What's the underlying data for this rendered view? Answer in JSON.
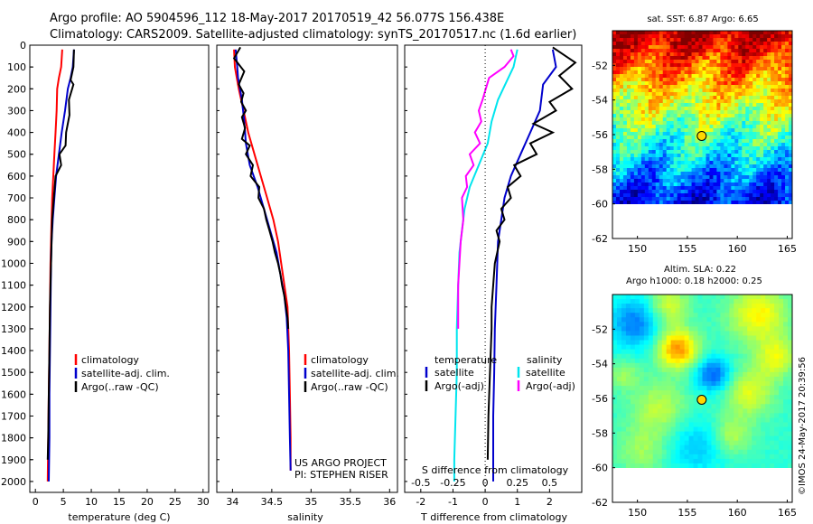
{
  "header": {
    "line1": "Argo profile: AO 5904596_112 18-May-2017 20170519_42 56.077S 156.438E",
    "line2": "Climatology: CARS2009. Satellite-adjusted climatology: synTS_20170517.nc (1.6d earlier)"
  },
  "colors": {
    "climatology": "#ff0000",
    "satellite": "#0000cc",
    "argo": "#000000",
    "satellite_s": "#00e5ee",
    "argo_s": "#ff00ff"
  },
  "y_axis": {
    "ticks": [
      "0",
      "100",
      "200",
      "300",
      "400",
      "500",
      "600",
      "700",
      "800",
      "900",
      "1000",
      "1100",
      "1200",
      "1300",
      "1400",
      "1500",
      "1600",
      "1700",
      "1800",
      "1900",
      "2000"
    ],
    "lim": [
      0,
      2050
    ]
  },
  "chart_data": [
    {
      "type": "line",
      "xlabel": "temperature (deg C)",
      "xlim": [
        -1,
        31
      ],
      "xticks": [
        "0",
        "5",
        "10",
        "15",
        "20",
        "25",
        "30"
      ],
      "ylim": [
        2050,
        0
      ],
      "legend": [
        "climatology",
        "satellite-adj. clim.",
        "Argo(..raw -QC)"
      ],
      "series": [
        {
          "name": "climatology",
          "color": "#ff0000",
          "points": [
            [
              4.8,
              20
            ],
            [
              4.6,
              100
            ],
            [
              4.2,
              150
            ],
            [
              3.9,
              200
            ],
            [
              3.8,
              300
            ],
            [
              3.6,
              400
            ],
            [
              3.4,
              500
            ],
            [
              3.2,
              600
            ],
            [
              3.0,
              700
            ],
            [
              2.9,
              800
            ],
            [
              2.8,
              900
            ],
            [
              2.7,
              1000
            ],
            [
              2.6,
              1200
            ],
            [
              2.5,
              1400
            ],
            [
              2.4,
              1600
            ],
            [
              2.3,
              1800
            ],
            [
              2.2,
              2000
            ]
          ]
        },
        {
          "name": "satellite-adj. clim.",
          "color": "#0000cc",
          "points": [
            [
              6.9,
              20
            ],
            [
              6.7,
              100
            ],
            [
              6.3,
              150
            ],
            [
              5.8,
              200
            ],
            [
              5.3,
              300
            ],
            [
              4.7,
              400
            ],
            [
              4.2,
              500
            ],
            [
              3.7,
              600
            ],
            [
              3.4,
              700
            ],
            [
              3.1,
              800
            ],
            [
              2.9,
              900
            ],
            [
              2.8,
              1000
            ],
            [
              2.7,
              1200
            ],
            [
              2.6,
              1400
            ],
            [
              2.5,
              1600
            ],
            [
              2.5,
              1800
            ],
            [
              2.4,
              2000
            ]
          ]
        },
        {
          "name": "Argo(..raw -QC)",
          "color": "#000000",
          "points": [
            [
              6.9,
              20
            ],
            [
              6.8,
              100
            ],
            [
              6.3,
              160
            ],
            [
              6.8,
              180
            ],
            [
              6.0,
              250
            ],
            [
              6.1,
              320
            ],
            [
              5.5,
              400
            ],
            [
              5.4,
              460
            ],
            [
              4.3,
              500
            ],
            [
              4.6,
              550
            ],
            [
              3.6,
              600
            ],
            [
              3.3,
              700
            ],
            [
              3.0,
              800
            ],
            [
              2.9,
              900
            ],
            [
              2.8,
              1000
            ],
            [
              2.6,
              1200
            ],
            [
              2.5,
              1400
            ],
            [
              2.4,
              1600
            ],
            [
              2.3,
              1800
            ],
            [
              2.2,
              1900
            ]
          ]
        }
      ]
    },
    {
      "type": "line",
      "xlabel": "salinity",
      "xlim": [
        33.8,
        36.1
      ],
      "xticks": [
        "34",
        "34.5",
        "35",
        "35.5",
        "36"
      ],
      "ylim": [
        2050,
        0
      ],
      "legend": [
        "climatology",
        "satellite-adj. clim.",
        "Argo(..raw -QC)"
      ],
      "series": [
        {
          "name": "climatology",
          "color": "#ff0000",
          "points": [
            [
              34.02,
              20
            ],
            [
              34.03,
              100
            ],
            [
              34.08,
              200
            ],
            [
              34.14,
              300
            ],
            [
              34.2,
              400
            ],
            [
              34.28,
              500
            ],
            [
              34.36,
              600
            ],
            [
              34.44,
              700
            ],
            [
              34.52,
              800
            ],
            [
              34.58,
              900
            ],
            [
              34.62,
              1000
            ],
            [
              34.66,
              1100
            ],
            [
              34.7,
              1200
            ],
            [
              34.72,
              1400
            ],
            [
              34.73,
              1600
            ],
            [
              34.74,
              1800
            ],
            [
              34.74,
              1950
            ]
          ]
        },
        {
          "name": "satellite-adj. clim.",
          "color": "#0000cc",
          "points": [
            [
              34.04,
              20
            ],
            [
              34.06,
              100
            ],
            [
              34.07,
              150
            ],
            [
              34.12,
              250
            ],
            [
              34.15,
              350
            ],
            [
              34.17,
              450
            ],
            [
              34.22,
              550
            ],
            [
              34.32,
              650
            ],
            [
              34.4,
              750
            ],
            [
              34.48,
              850
            ],
            [
              34.56,
              950
            ],
            [
              34.61,
              1050
            ],
            [
              34.66,
              1150
            ],
            [
              34.69,
              1250
            ],
            [
              34.71,
              1400
            ],
            [
              34.72,
              1600
            ],
            [
              34.73,
              1800
            ],
            [
              34.74,
              1950
            ]
          ]
        },
        {
          "name": "Argo(..raw -QC)",
          "color": "#000000",
          "points": [
            [
              34.1,
              10
            ],
            [
              34.02,
              60
            ],
            [
              34.15,
              120
            ],
            [
              34.08,
              180
            ],
            [
              34.14,
              220
            ],
            [
              34.11,
              260
            ],
            [
              34.17,
              300
            ],
            [
              34.12,
              330
            ],
            [
              34.16,
              380
            ],
            [
              34.12,
              430
            ],
            [
              34.22,
              460
            ],
            [
              34.17,
              500
            ],
            [
              34.26,
              550
            ],
            [
              34.23,
              600
            ],
            [
              34.34,
              650
            ],
            [
              34.33,
              700
            ],
            [
              34.4,
              750
            ],
            [
              34.43,
              800
            ],
            [
              34.47,
              850
            ],
            [
              34.51,
              900
            ],
            [
              34.54,
              950
            ],
            [
              34.58,
              1000
            ],
            [
              34.61,
              1050
            ],
            [
              34.63,
              1100
            ],
            [
              34.66,
              1150
            ],
            [
              34.68,
              1200
            ],
            [
              34.7,
              1250
            ],
            [
              34.71,
              1300
            ]
          ]
        }
      ]
    },
    {
      "type": "line",
      "xlabel": "T difference from climatology",
      "xlabel_top": "S difference from climatology",
      "xlim": [
        -2.5,
        3.0
      ],
      "xticks": [
        "-2",
        "-1",
        "0",
        "1",
        "2"
      ],
      "xticks_top": [
        "-0.5",
        "-0.25",
        "0",
        "0.25",
        "0.5"
      ],
      "ylim": [
        2050,
        0
      ],
      "legend_t_title": "temperature",
      "legend_t": [
        "satellite",
        "Argo(-adj)"
      ],
      "legend_s_title": "salinity",
      "legend_s": [
        "satellite",
        "Argo(-adj)"
      ],
      "series": [
        {
          "name": "temperature satellite",
          "color": "#0000cc",
          "points": [
            [
              2.1,
              20
            ],
            [
              2.2,
              100
            ],
            [
              1.8,
              180
            ],
            [
              1.7,
              300
            ],
            [
              1.4,
              400
            ],
            [
              1.1,
              500
            ],
            [
              0.8,
              600
            ],
            [
              0.6,
              700
            ],
            [
              0.5,
              800
            ],
            [
              0.4,
              900
            ],
            [
              0.35,
              1100
            ],
            [
              0.3,
              1300
            ],
            [
              0.28,
              1500
            ],
            [
              0.25,
              1700
            ],
            [
              0.25,
              1900
            ],
            [
              0.25,
              2000
            ]
          ]
        },
        {
          "name": "temperature Argo(-adj)",
          "color": "#000000",
          "points": [
            [
              2.1,
              10
            ],
            [
              2.8,
              80
            ],
            [
              2.3,
              140
            ],
            [
              2.7,
              200
            ],
            [
              2.0,
              260
            ],
            [
              2.2,
              300
            ],
            [
              1.5,
              360
            ],
            [
              2.1,
              400
            ],
            [
              1.4,
              450
            ],
            [
              1.6,
              500
            ],
            [
              0.9,
              550
            ],
            [
              1.1,
              600
            ],
            [
              0.7,
              650
            ],
            [
              0.8,
              700
            ],
            [
              0.5,
              750
            ],
            [
              0.6,
              800
            ],
            [
              0.35,
              850
            ],
            [
              0.45,
              900
            ],
            [
              0.3,
              1000
            ],
            [
              0.25,
              1100
            ],
            [
              0.2,
              1200
            ],
            [
              0.2,
              1300
            ],
            [
              0.15,
              1500
            ],
            [
              0.1,
              1700
            ],
            [
              0.08,
              1900
            ]
          ]
        },
        {
          "name": "salinity satellite",
          "color": "#00e5ee",
          "points": [
            [
              0.25,
              20
            ],
            [
              0.22,
              100
            ],
            [
              0.18,
              150
            ],
            [
              0.1,
              250
            ],
            [
              0.05,
              350
            ],
            [
              0.02,
              450
            ],
            [
              -0.05,
              550
            ],
            [
              -0.12,
              650
            ],
            [
              -0.16,
              750
            ],
            [
              -0.18,
              850
            ],
            [
              -0.2,
              950
            ],
            [
              -0.21,
              1100
            ],
            [
              -0.22,
              1300
            ],
            [
              -0.22,
              1500
            ],
            [
              -0.23,
              1700
            ],
            [
              -0.24,
              1900
            ],
            [
              -0.24,
              2000
            ]
          ]
        },
        {
          "name": "salinity Argo(-adj)",
          "color": "#ff00ff",
          "points": [
            [
              0.2,
              20
            ],
            [
              0.22,
              50
            ],
            [
              0.15,
              100
            ],
            [
              0.03,
              150
            ],
            [
              -0.02,
              250
            ],
            [
              -0.05,
              300
            ],
            [
              -0.03,
              350
            ],
            [
              -0.08,
              400
            ],
            [
              -0.04,
              450
            ],
            [
              -0.12,
              500
            ],
            [
              -0.09,
              550
            ],
            [
              -0.15,
              600
            ],
            [
              -0.14,
              650
            ],
            [
              -0.18,
              700
            ],
            [
              -0.17,
              800
            ],
            [
              -0.19,
              900
            ],
            [
              -0.2,
              1000
            ],
            [
              -0.21,
              1100
            ],
            [
              -0.21,
              1200
            ],
            [
              -0.21,
              1300
            ]
          ]
        }
      ]
    }
  ],
  "notes": {
    "project": "US ARGO PROJECT",
    "pi": "PI: STEPHEN RISER",
    "credit": "©IMOS 24-May-2017 20:39:56"
  },
  "maps": [
    {
      "title": "sat. SST: 6.87 Argo: 6.65",
      "yticks": [
        "-52",
        "-54",
        "-56",
        "-58",
        "-60",
        "-62"
      ],
      "xticks": [
        "150",
        "155",
        "160",
        "165"
      ],
      "float_marker": {
        "lon": 156.438,
        "lat": -56.077
      }
    },
    {
      "title_line1": "Altim. SLA: 0.22",
      "title_line2": "Argo h1000: 0.18 h2000: 0.25",
      "yticks": [
        "-52",
        "-54",
        "-56",
        "-58",
        "-60",
        "-62"
      ],
      "xticks": [
        "150",
        "155",
        "160",
        "165"
      ],
      "float_marker": {
        "lon": 156.438,
        "lat": -56.077
      }
    }
  ]
}
